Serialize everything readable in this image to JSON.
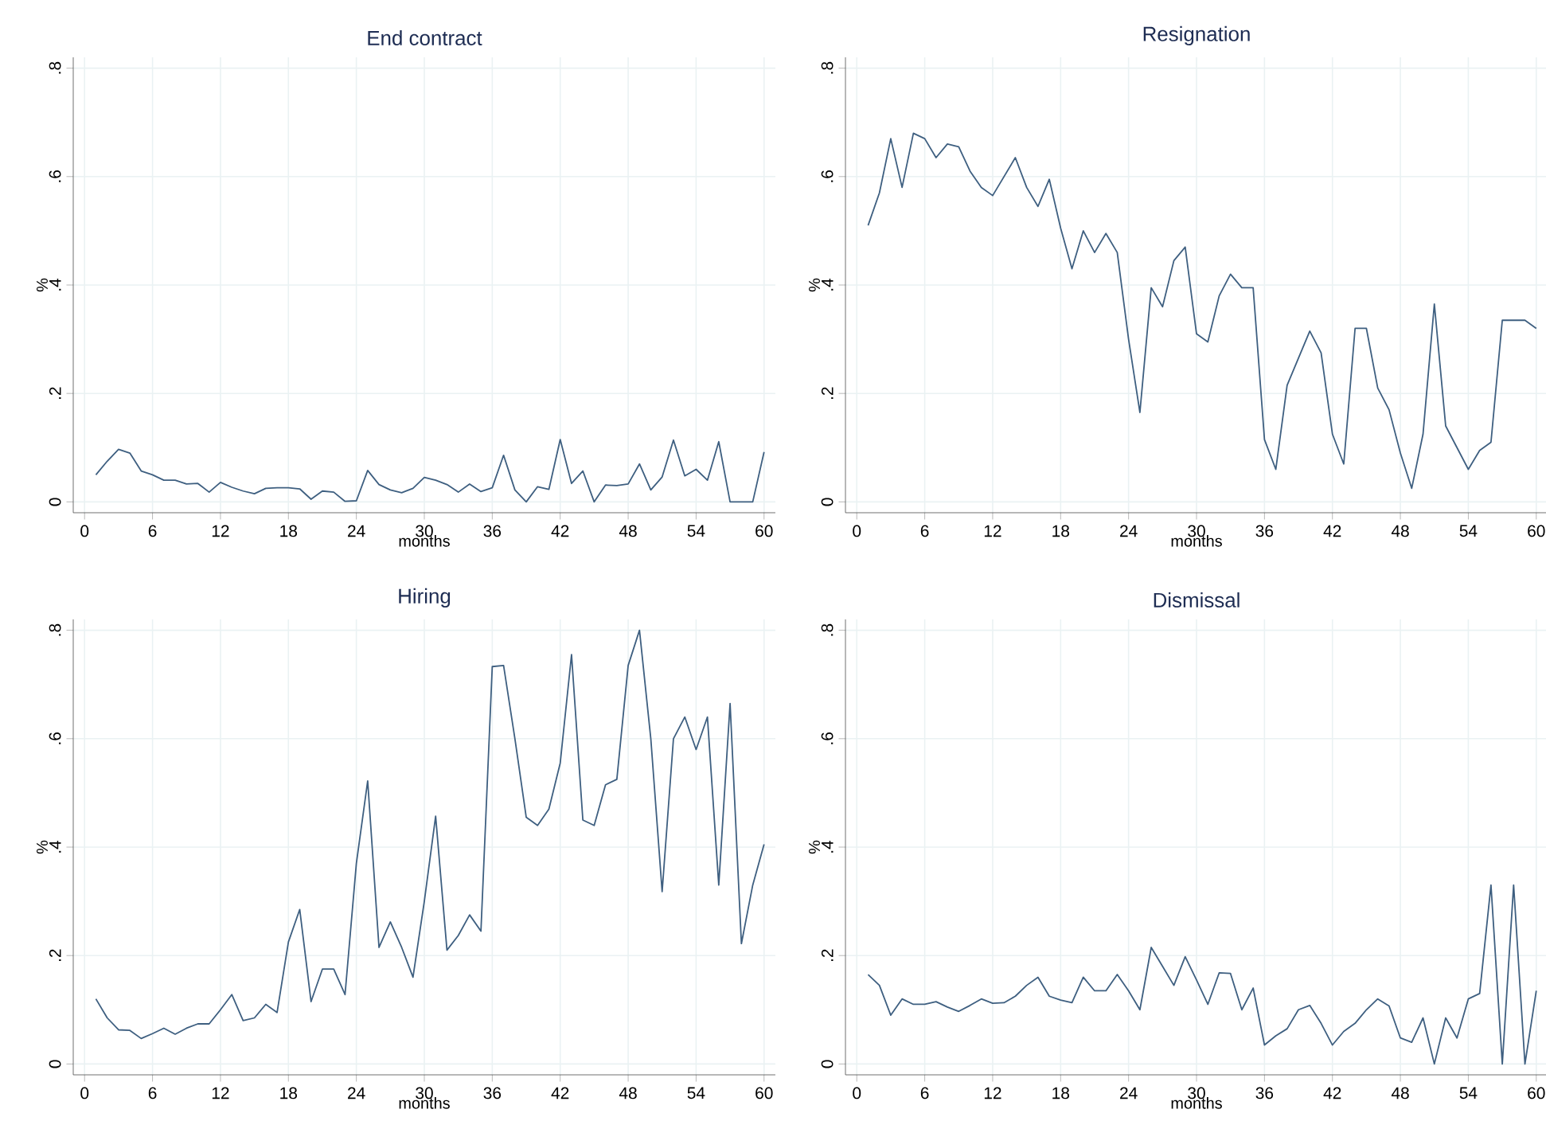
{
  "chart_data": [
    {
      "type": "line",
      "title": "End contract",
      "xlabel": "months",
      "ylabel": "%",
      "grid": true,
      "xlim": [
        -1,
        61
      ],
      "ylim": [
        -0.02,
        0.82
      ],
      "xticks": [
        0,
        6,
        12,
        18,
        24,
        30,
        36,
        42,
        48,
        54,
        60
      ],
      "yticks": [
        0,
        {
          "value": 0.2,
          "label": ".2"
        },
        {
          "value": 0.4,
          "label": ".4"
        },
        {
          "value": 0.6,
          "label": ".6"
        },
        {
          "value": 0.8,
          "label": ".8"
        }
      ],
      "x": [
        1,
        2,
        3,
        4,
        5,
        6,
        7,
        8,
        9,
        10,
        11,
        12,
        13,
        14,
        15,
        16,
        17,
        18,
        19,
        20,
        21,
        22,
        23,
        24,
        25,
        26,
        27,
        28,
        29,
        30,
        31,
        32,
        33,
        34,
        35,
        36,
        37,
        38,
        39,
        40,
        41,
        42,
        43,
        44,
        45,
        46,
        47,
        48,
        49,
        50,
        51,
        52,
        53,
        54,
        55,
        56,
        57,
        58,
        59,
        60
      ],
      "series": [
        {
          "color": "#3e5f80",
          "values": [
            0.05,
            0.075,
            0.097,
            0.09,
            0.057,
            0.05,
            0.04,
            0.04,
            0.033,
            0.034,
            0.018,
            0.036,
            0.027,
            0.02,
            0.015,
            0.025,
            0.026,
            0.026,
            0.024,
            0.005,
            0.02,
            0.018,
            0.001,
            0.002,
            0.058,
            0.032,
            0.022,
            0.017,
            0.025,
            0.045,
            0.04,
            0.032,
            0.018,
            0.033,
            0.019,
            0.026,
            0.086,
            0.022,
            0.0,
            0.028,
            0.023,
            0.115,
            0.034,
            0.057,
            0.0,
            0.031,
            0.03,
            0.033,
            0.07,
            0.022,
            0.046,
            0.114,
            0.048,
            0.06,
            0.04,
            0.111,
            0.0,
            0.0,
            0.0,
            0.092
          ]
        }
      ]
    },
    {
      "type": "line",
      "title": "Resignation",
      "xlabel": "months",
      "ylabel": "%",
      "grid": true,
      "xlim": [
        -1,
        61
      ],
      "ylim": [
        -0.02,
        0.82
      ],
      "xticks": [
        0,
        6,
        12,
        18,
        24,
        30,
        36,
        42,
        48,
        54,
        60
      ],
      "yticks": [
        0,
        {
          "value": 0.2,
          "label": ".2"
        },
        {
          "value": 0.4,
          "label": ".4"
        },
        {
          "value": 0.6,
          "label": ".6"
        },
        {
          "value": 0.8,
          "label": ".8"
        }
      ],
      "x": [
        1,
        2,
        3,
        4,
        5,
        6,
        7,
        8,
        9,
        10,
        11,
        12,
        13,
        14,
        15,
        16,
        17,
        18,
        19,
        20,
        21,
        22,
        23,
        24,
        25,
        26,
        27,
        28,
        29,
        30,
        31,
        32,
        33,
        34,
        35,
        36,
        37,
        38,
        39,
        40,
        41,
        42,
        43,
        44,
        45,
        46,
        47,
        48,
        49,
        50,
        51,
        52,
        53,
        54,
        55,
        56,
        57,
        58,
        59,
        60
      ],
      "series": [
        {
          "color": "#3e5f80",
          "values": [
            0.51,
            0.57,
            0.67,
            0.58,
            0.68,
            0.67,
            0.635,
            0.66,
            0.655,
            0.61,
            0.58,
            0.565,
            0.6,
            0.635,
            0.58,
            0.545,
            0.595,
            0.505,
            0.43,
            0.5,
            0.46,
            0.495,
            0.46,
            0.3,
            0.165,
            0.395,
            0.36,
            0.445,
            0.47,
            0.31,
            0.295,
            0.38,
            0.42,
            0.395,
            0.395,
            0.115,
            0.06,
            0.215,
            0.265,
            0.315,
            0.275,
            0.125,
            0.07,
            0.32,
            0.32,
            0.21,
            0.17,
            0.09,
            0.025,
            0.125,
            0.365,
            0.14,
            0.1,
            0.06,
            0.095,
            0.11,
            0.335,
            0.335,
            0.335,
            0.32
          ]
        }
      ]
    },
    {
      "type": "line",
      "title": "Hiring",
      "xlabel": "months",
      "ylabel": "%",
      "grid": true,
      "xlim": [
        -1,
        61
      ],
      "ylim": [
        -0.02,
        0.82
      ],
      "xticks": [
        0,
        6,
        12,
        18,
        24,
        30,
        36,
        42,
        48,
        54,
        60
      ],
      "yticks": [
        0,
        {
          "value": 0.2,
          "label": ".2"
        },
        {
          "value": 0.4,
          "label": ".4"
        },
        {
          "value": 0.6,
          "label": ".6"
        },
        {
          "value": 0.8,
          "label": ".8"
        }
      ],
      "x": [
        1,
        2,
        3,
        4,
        5,
        6,
        7,
        8,
        9,
        10,
        11,
        12,
        13,
        14,
        15,
        16,
        17,
        18,
        19,
        20,
        21,
        22,
        23,
        24,
        25,
        26,
        27,
        28,
        29,
        30,
        31,
        32,
        33,
        34,
        35,
        36,
        37,
        38,
        39,
        40,
        41,
        42,
        43,
        44,
        45,
        46,
        47,
        48,
        49,
        50,
        51,
        52,
        53,
        54,
        55,
        56,
        57,
        58,
        59,
        60
      ],
      "series": [
        {
          "color": "#3e5f80",
          "values": [
            0.12,
            0.085,
            0.063,
            0.062,
            0.047,
            0.056,
            0.066,
            0.055,
            0.066,
            0.074,
            0.074,
            0.1,
            0.128,
            0.08,
            0.085,
            0.11,
            0.095,
            0.225,
            0.285,
            0.115,
            0.175,
            0.175,
            0.128,
            0.37,
            0.522,
            0.215,
            0.262,
            0.215,
            0.16,
            0.3,
            0.457,
            0.21,
            0.237,
            0.275,
            0.245,
            0.733,
            0.735,
            0.6,
            0.455,
            0.44,
            0.47,
            0.555,
            0.755,
            0.45,
            0.44,
            0.515,
            0.525,
            0.735,
            0.8,
            0.6,
            0.318,
            0.6,
            0.64,
            0.58,
            0.64,
            0.33,
            0.665,
            0.222,
            0.33,
            0.405
          ]
        }
      ]
    },
    {
      "type": "line",
      "title": "Dismissal",
      "xlabel": "months",
      "ylabel": "%",
      "grid": true,
      "xlim": [
        -1,
        61
      ],
      "ylim": [
        -0.02,
        0.82
      ],
      "xticks": [
        0,
        6,
        12,
        18,
        24,
        30,
        36,
        42,
        48,
        54,
        60
      ],
      "yticks": [
        0,
        {
          "value": 0.2,
          "label": ".2"
        },
        {
          "value": 0.4,
          "label": ".4"
        },
        {
          "value": 0.6,
          "label": ".6"
        },
        {
          "value": 0.8,
          "label": ".8"
        }
      ],
      "x": [
        1,
        2,
        3,
        4,
        5,
        6,
        7,
        8,
        9,
        10,
        11,
        12,
        13,
        14,
        15,
        16,
        17,
        18,
        19,
        20,
        21,
        22,
        23,
        24,
        25,
        26,
        27,
        28,
        29,
        30,
        31,
        32,
        33,
        34,
        35,
        36,
        37,
        38,
        39,
        40,
        41,
        42,
        43,
        44,
        45,
        46,
        47,
        48,
        49,
        50,
        51,
        52,
        53,
        54,
        55,
        56,
        57,
        58,
        59,
        60
      ],
      "series": [
        {
          "color": "#3e5f80",
          "values": [
            0.165,
            0.145,
            0.09,
            0.12,
            0.11,
            0.11,
            0.115,
            0.105,
            0.097,
            0.108,
            0.12,
            0.112,
            0.113,
            0.125,
            0.145,
            0.16,
            0.125,
            0.118,
            0.113,
            0.16,
            0.135,
            0.135,
            0.165,
            0.135,
            0.1,
            0.215,
            0.18,
            0.145,
            0.198,
            0.155,
            0.11,
            0.168,
            0.167,
            0.1,
            0.14,
            0.035,
            0.052,
            0.065,
            0.1,
            0.108,
            0.075,
            0.035,
            0.06,
            0.075,
            0.1,
            0.12,
            0.107,
            0.048,
            0.04,
            0.085,
            0.0,
            0.085,
            0.048,
            0.12,
            0.13,
            0.33,
            0.0,
            0.33,
            0.0,
            0.135
          ]
        }
      ]
    }
  ]
}
